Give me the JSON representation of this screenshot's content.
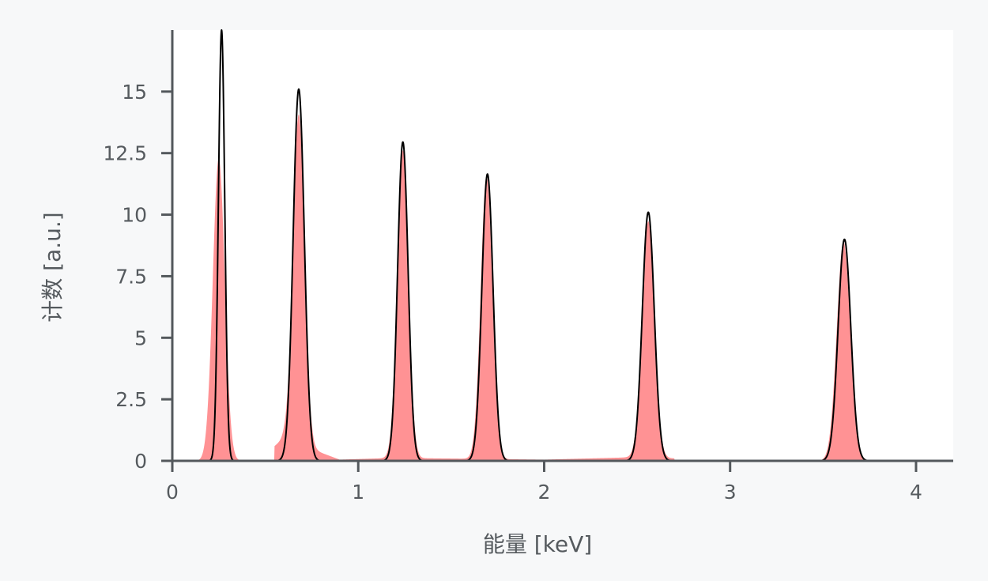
{
  "chart_data": {
    "type": "area",
    "title": "",
    "xlabel": "能量 [keV]",
    "ylabel": "计数 [a.u.]",
    "xlim": [
      0,
      4.2
    ],
    "ylim": [
      0,
      17.5
    ],
    "x_ticks": [
      {
        "value": 0,
        "label": "0"
      },
      {
        "value": 1,
        "label": "1"
      },
      {
        "value": 2,
        "label": "2"
      },
      {
        "value": 3,
        "label": "3"
      },
      {
        "value": 4,
        "label": "4"
      }
    ],
    "y_ticks": [
      {
        "value": 0,
        "label": "0"
      },
      {
        "value": 2.5,
        "label": "2.5"
      },
      {
        "value": 5,
        "label": "5"
      },
      {
        "value": 7.5,
        "label": "7.5"
      },
      {
        "value": 10,
        "label": "10"
      },
      {
        "value": 12.5,
        "label": "12.5"
      },
      {
        "value": 15,
        "label": "15"
      }
    ],
    "grid": false,
    "legend": "none",
    "series": [
      {
        "style": "filled-area",
        "color": "#ff9294",
        "peaks": [
          {
            "center": 0.25,
            "height": 12.3,
            "sigma": 0.032
          },
          {
            "center": 0.68,
            "height": 13.4,
            "sigma": 0.031
          },
          {
            "center": 1.24,
            "height": 12.5,
            "sigma": 0.03
          },
          {
            "center": 1.69,
            "height": 11.5,
            "sigma": 0.031
          },
          {
            "center": 2.56,
            "height": 9.6,
            "sigma": 0.033
          },
          {
            "center": 3.61,
            "height": 8.9,
            "sigma": 0.036
          }
        ],
        "background": [
          {
            "x": 0.55,
            "y": 0.6
          },
          {
            "x": 0.6,
            "y": 0.9
          },
          {
            "x": 0.9,
            "y": 0.05
          },
          {
            "x": 1.2,
            "y": 0.12
          },
          {
            "x": 2.0,
            "y": 0.05
          },
          {
            "x": 2.5,
            "y": 0.15
          },
          {
            "x": 2.7,
            "y": 0.1
          }
        ]
      },
      {
        "style": "line",
        "color": "#000000",
        "peaks": [
          {
            "center": 0.265,
            "height": 17.5,
            "sigma": 0.017
          },
          {
            "center": 0.68,
            "height": 15.1,
            "sigma": 0.03
          },
          {
            "center": 1.24,
            "height": 12.95,
            "sigma": 0.028
          },
          {
            "center": 1.695,
            "height": 11.65,
            "sigma": 0.03
          },
          {
            "center": 2.56,
            "height": 10.1,
            "sigma": 0.032
          },
          {
            "center": 3.615,
            "height": 9.0,
            "sigma": 0.034
          }
        ]
      }
    ]
  }
}
